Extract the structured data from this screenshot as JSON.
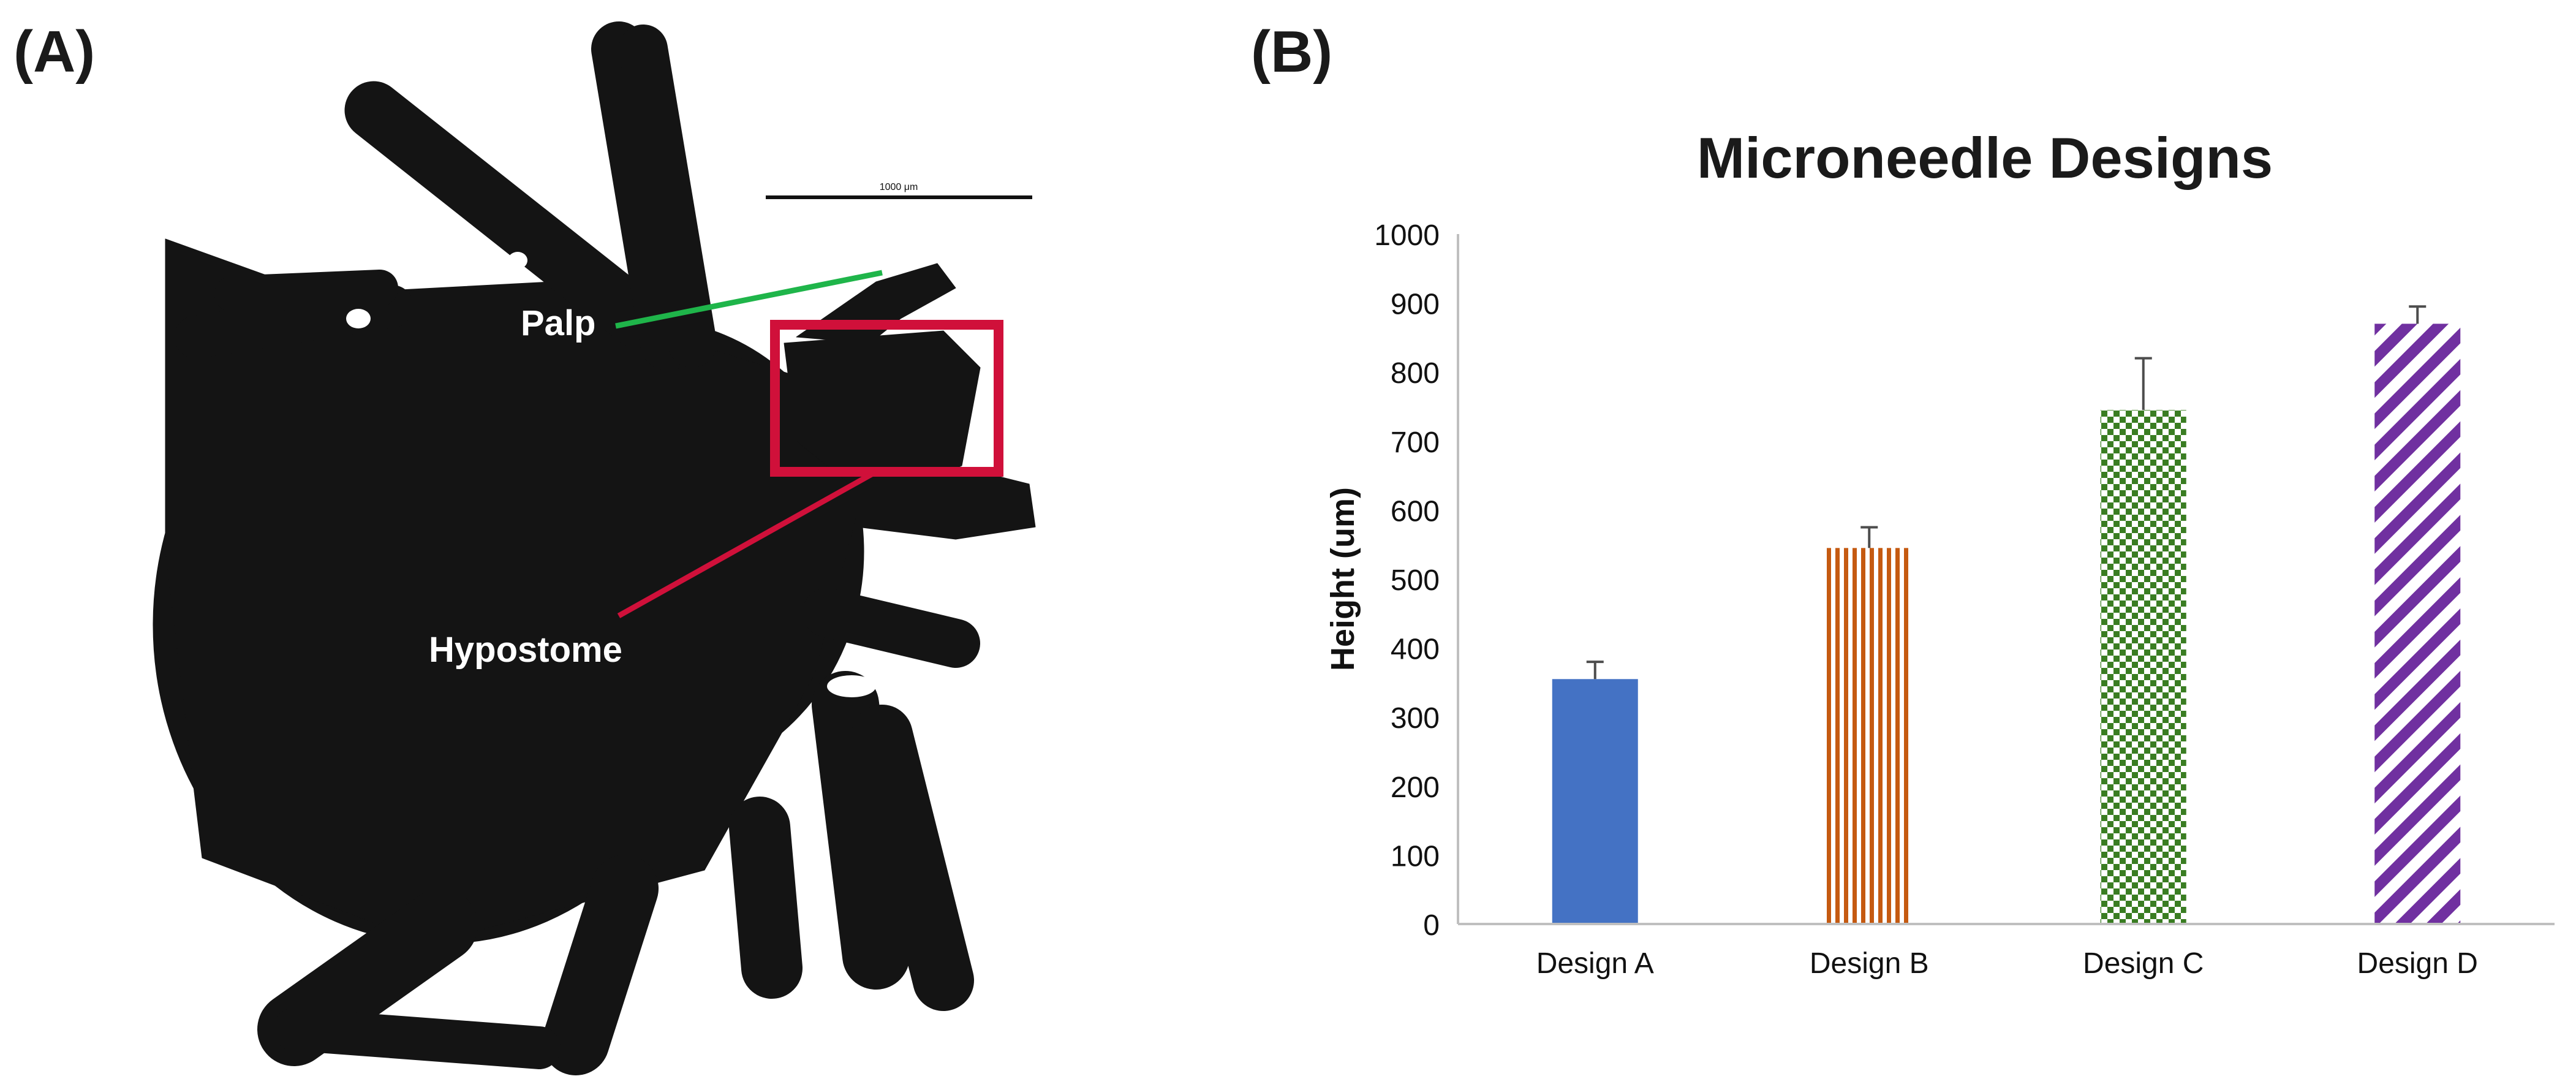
{
  "panel_a": {
    "label": "(A)",
    "scale_bar_text": "1000 μm",
    "annotations": {
      "palp": "Palp",
      "hypostome": "Hypostome"
    },
    "colors": {
      "palp_line": "#1fb54a",
      "hypostome_box": "#d0103a",
      "specimen": "#141414",
      "background": "#ffffff"
    }
  },
  "panel_b": {
    "label": "(B)"
  },
  "chart_data": {
    "type": "bar",
    "title": "Microneedle Designs",
    "xlabel": "",
    "ylabel": "Height (um)",
    "ylim": [
      0,
      1000
    ],
    "yticks": [
      0,
      100,
      200,
      300,
      400,
      500,
      600,
      700,
      800,
      900,
      1000
    ],
    "categories": [
      "Design A",
      "Design B",
      "Design C",
      "Design D"
    ],
    "values": [
      355,
      545,
      745,
      870
    ],
    "errors": [
      25,
      30,
      75,
      25
    ],
    "grid": false,
    "legend": "none",
    "bar_styles": [
      {
        "pattern": "solid",
        "color": "#4472c4"
      },
      {
        "pattern": "vertical-stripes",
        "color": "#c55a11"
      },
      {
        "pattern": "checkerboard",
        "color": "#3a7d22"
      },
      {
        "pattern": "diagonal-stripes",
        "color": "#7030a0"
      }
    ]
  }
}
